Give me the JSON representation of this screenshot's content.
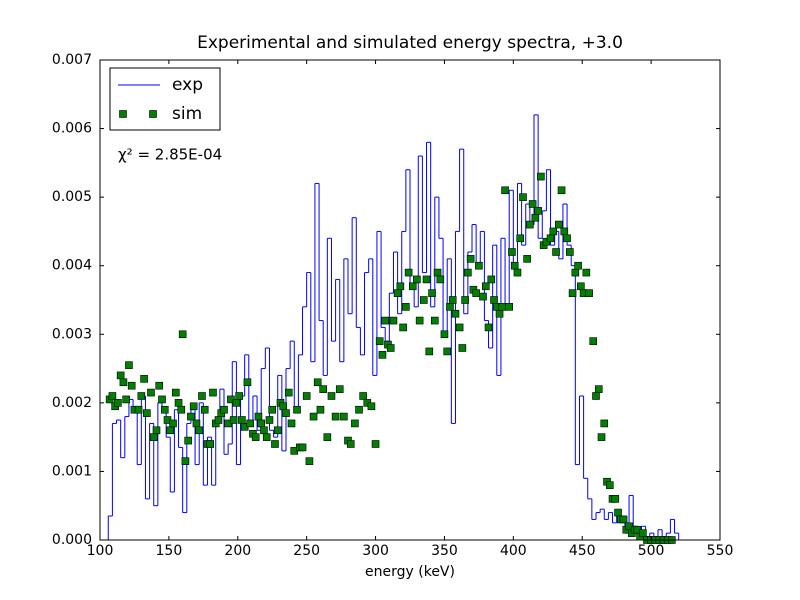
{
  "chart_data": {
    "type": "histogram",
    "title": "Experimental and simulated energy spectra, +3.0",
    "xlabel": "energy (keV)",
    "annotation": "χ² = 2.85E-04",
    "legend": "upper left",
    "xlim": [
      100,
      550
    ],
    "ylim": [
      0,
      0.007
    ],
    "xticks": [
      100,
      150,
      200,
      250,
      300,
      350,
      400,
      450,
      500,
      550
    ],
    "yticks": [
      {
        "value": 0,
        "label": "0.000"
      },
      0.001,
      0.002,
      0.003,
      0.004,
      0.005,
      0.006,
      0.007
    ],
    "series": [
      {
        "name": "exp",
        "color": "#0000ff",
        "bins": [
          106,
          109,
          112,
          115,
          118,
          121,
          124,
          127,
          130,
          133,
          136,
          139,
          142,
          145,
          148,
          151,
          154,
          157,
          160,
          163,
          166,
          169,
          172,
          175,
          178,
          181,
          184,
          187,
          190,
          193,
          196,
          199,
          202,
          205,
          208,
          211,
          214,
          217,
          220,
          223,
          226,
          229,
          232,
          235,
          238,
          241,
          244,
          247,
          250,
          253,
          256,
          259,
          262,
          265,
          268,
          271,
          274,
          277,
          280,
          283,
          286,
          289,
          292,
          295,
          298,
          301,
          304,
          307,
          310,
          313,
          316,
          319,
          322,
          325,
          328,
          331,
          334,
          337,
          340,
          343,
          346,
          349,
          352,
          355,
          358,
          361,
          364,
          367,
          370,
          373,
          376,
          379,
          382,
          385,
          388,
          391,
          394,
          397,
          400,
          403,
          406,
          409,
          412,
          415,
          418,
          421,
          424,
          427,
          430,
          433,
          436,
          439,
          442,
          445,
          448,
          451,
          454,
          457,
          460,
          463,
          466,
          469,
          472,
          475,
          478,
          481,
          484,
          487,
          490,
          493,
          496,
          499,
          502,
          505,
          508,
          511,
          514,
          517,
          520
        ],
        "values": [
          0.00035,
          0.0017,
          0.00175,
          0.0012,
          0.0018,
          0.00205,
          0.0019,
          0.0011,
          0.0021,
          0.0006,
          0.0017,
          0.0005,
          0.002,
          0.0019,
          0.0015,
          0.0007,
          0.0019,
          0.00135,
          0.0004,
          0.0017,
          0.0019,
          0.0011,
          0.002,
          0.0008,
          0.0015,
          0.0008,
          0.0017,
          0.0022,
          0.00125,
          0.0014,
          0.0026,
          0.0011,
          0.0021,
          0.0027,
          0.0017,
          0.0021,
          0.0016,
          0.0025,
          0.0028,
          0.0016,
          0.0015,
          0.0024,
          0.0013,
          0.0025,
          0.0029,
          0.0019,
          0.0027,
          0.0034,
          0.0039,
          0.0026,
          0.0052,
          0.0032,
          0.0024,
          0.0044,
          0.0029,
          0.0038,
          0.0026,
          0.0041,
          0.0033,
          0.0047,
          0.0031,
          0.0027,
          0.0039,
          0.0041,
          0.0024,
          0.0045,
          0.0031,
          0.0029,
          0.0036,
          0.0042,
          0.0033,
          0.0045,
          0.0054,
          0.0037,
          0.0034,
          0.0056,
          0.0039,
          0.0058,
          0.0034,
          0.005,
          0.0044,
          0.003,
          0.0041,
          0.0017,
          0.0045,
          0.0057,
          0.0033,
          0.0042,
          0.0046,
          0.004,
          0.0045,
          0.0032,
          0.0028,
          0.0043,
          0.0024,
          0.0044,
          0.0034,
          0.0051,
          0.004,
          0.0052,
          0.0043,
          0.0049,
          0.0046,
          0.0062,
          0.0044,
          0.0048,
          0.0054,
          0.0043,
          0.0045,
          0.0041,
          0.0049,
          0.0043,
          0.004,
          0.0011,
          0.0021,
          0.0009,
          0.0006,
          0.0003,
          0.0004,
          0.00045,
          0.0003,
          0.0004,
          0.00025,
          0.0004,
          0.0003,
          0.0001,
          0.00065,
          0.0002,
          0.0001,
          0.0002,
          5e-05,
          0.0001,
          5e-05,
          0.00015,
          5e-05,
          0.0001,
          0.0003,
          0.0001
        ]
      },
      {
        "name": "sim",
        "color": "#008000",
        "x": [
          107,
          109,
          111,
          113,
          115,
          117,
          119,
          121,
          123,
          125,
          128,
          130,
          132,
          134,
          137,
          139,
          141,
          143,
          145,
          147,
          149,
          151,
          153,
          155,
          157,
          159,
          160,
          162,
          164,
          166,
          168,
          170,
          172,
          174,
          176,
          178,
          180,
          182,
          184,
          186,
          188,
          190,
          193,
          195,
          197,
          199,
          201,
          203,
          205,
          207,
          209,
          211,
          213,
          215,
          217,
          219,
          221,
          223,
          225,
          227,
          229,
          231,
          233,
          235,
          237,
          239,
          241,
          243,
          245,
          247,
          250,
          252,
          255,
          258,
          260,
          262,
          265,
          268,
          271,
          274,
          277,
          280,
          282,
          285,
          288,
          291,
          294,
          297,
          300,
          303,
          305,
          307,
          309,
          311,
          313,
          316,
          318,
          320,
          322,
          324,
          327,
          330,
          332,
          335,
          337,
          339,
          341,
          343,
          345,
          347,
          350,
          352,
          354,
          356,
          358,
          361,
          363,
          365,
          367,
          369,
          371,
          373,
          375,
          378,
          380,
          382,
          384,
          386,
          388,
          390,
          392,
          394,
          397,
          399,
          401,
          403,
          405,
          407,
          410,
          412,
          414,
          416,
          418,
          420,
          422,
          424,
          427,
          429,
          431,
          433,
          435,
          437,
          439,
          441,
          443,
          445,
          447,
          449,
          451,
          453,
          455,
          458,
          460,
          462,
          464,
          466,
          468,
          470,
          472,
          474,
          476,
          478,
          480,
          482,
          484,
          486,
          488,
          490,
          492,
          494,
          497,
          500,
          503,
          506,
          509,
          512,
          515
        ],
        "values": [
          0.00205,
          0.0021,
          0.00195,
          0.002,
          0.0024,
          0.0023,
          0.00205,
          0.00255,
          0.00225,
          0.0019,
          0.0019,
          0.0021,
          0.00235,
          0.00185,
          0.00215,
          0.0015,
          0.0016,
          0.00225,
          0.00205,
          0.0019,
          0.00175,
          0.0016,
          0.0017,
          0.00215,
          0.002,
          0.0019,
          0.003,
          0.00115,
          0.00145,
          0.0018,
          0.00195,
          0.0017,
          0.0016,
          0.0021,
          0.0019,
          0.0014,
          0.0014,
          0.00215,
          0.0017,
          0.00175,
          0.00185,
          0.0019,
          0.0017,
          0.00205,
          0.00175,
          0.002,
          0.0021,
          0.00175,
          0.00165,
          0.0023,
          0.0017,
          0.00155,
          0.0015,
          0.0018,
          0.0017,
          0.0016,
          0.0015,
          0.00175,
          0.0019,
          0.0014,
          0.0016,
          0.002,
          0.00195,
          0.00185,
          0.00215,
          0.0017,
          0.0013,
          0.0019,
          0.00135,
          0.00135,
          0.0021,
          0.00115,
          0.0018,
          0.0023,
          0.0019,
          0.0022,
          0.0015,
          0.0021,
          0.0018,
          0.0022,
          0.0018,
          0.00145,
          0.0014,
          0.0017,
          0.0019,
          0.0021,
          0.002,
          0.00195,
          0.0014,
          0.0029,
          0.0027,
          0.0032,
          0.00285,
          0.0028,
          0.0032,
          0.0036,
          0.0037,
          0.0031,
          0.0034,
          0.0039,
          0.0037,
          0.0038,
          0.0032,
          0.0035,
          0.0038,
          0.00275,
          0.0036,
          0.0032,
          0.0039,
          0.0038,
          0.003,
          0.00275,
          0.0034,
          0.0035,
          0.0033,
          0.0031,
          0.0028,
          0.0035,
          0.0039,
          0.0041,
          0.00365,
          0.0036,
          0.004,
          0.00355,
          0.0037,
          0.0031,
          0.0038,
          0.0035,
          0.0034,
          0.0033,
          0.0034,
          0.0051,
          0.0034,
          0.0042,
          0.004,
          0.0039,
          0.0044,
          0.005,
          0.0041,
          0.0046,
          0.0049,
          0.0047,
          0.0048,
          0.0053,
          0.0043,
          0.00435,
          0.0044,
          0.0045,
          0.0042,
          0.0046,
          0.0051,
          0.0045,
          0.0044,
          0.0042,
          0.0036,
          0.0039,
          0.004,
          0.0037,
          0.0036,
          0.0039,
          0.0036,
          0.0029,
          0.0021,
          0.0022,
          0.0015,
          0.0017,
          0.00085,
          0.0008,
          0.0006,
          0.0006,
          0.0004,
          0.0003,
          0.0003,
          0.00015,
          0.0002,
          0.0001,
          0.00015,
          0.00015,
          5e-05,
          0.0001,
          0,
          0,
          0,
          0,
          0,
          0,
          0
        ]
      }
    ]
  }
}
